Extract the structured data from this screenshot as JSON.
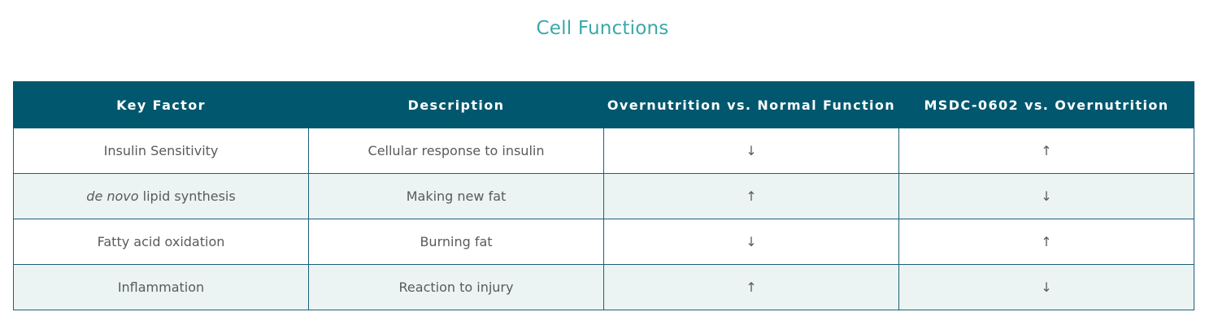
{
  "title": "Cell Functions",
  "table": {
    "headers": [
      "Key Factor",
      "Description",
      "Overnutrition vs. Normal Function",
      "MSDC-0602 vs. Overnutrition"
    ],
    "rows": [
      {
        "factor_italic": "",
        "factor": "Insulin Sensitivity",
        "description": "Cellular response to insulin",
        "overnutrition": "↓",
        "msdc": "↑"
      },
      {
        "factor_italic": "de novo",
        "factor": " lipid synthesis",
        "description": "Making new fat",
        "overnutrition": "↑",
        "msdc": "↓"
      },
      {
        "factor_italic": "",
        "factor": "Fatty acid oxidation",
        "description": "Burning fat",
        "overnutrition": "↓",
        "msdc": "↑"
      },
      {
        "factor_italic": "",
        "factor": "Inflammation",
        "description": "Reaction to injury",
        "overnutrition": "↑",
        "msdc": "↓"
      }
    ]
  }
}
